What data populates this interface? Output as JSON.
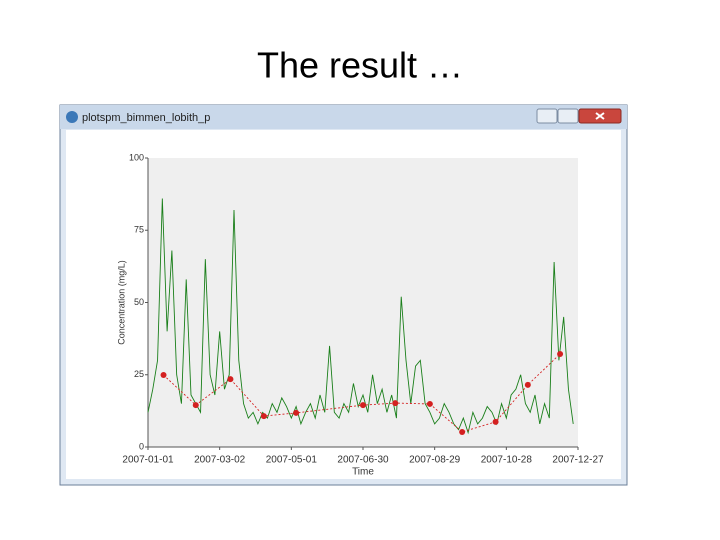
{
  "slide_title": "The result …",
  "window": {
    "title": "plotspm_bimmen_lobith_p"
  },
  "chart_data": {
    "type": "line",
    "xlabel": "Time",
    "ylabel": "Concentration (mg/L)",
    "xlim": [
      "2007-01-01",
      "2007-12-27"
    ],
    "xticks": [
      "2007-01-01",
      "2007-03-02",
      "2007-05-01",
      "2007-06-30",
      "2007-08-29",
      "2007-10-28",
      "2007-12-27"
    ],
    "ylim": [
      0,
      100
    ],
    "yticks": [
      0,
      25,
      50,
      75,
      100
    ],
    "series": [
      {
        "color": "#1a7f1a",
        "x": [
          "2007-01-01",
          "2007-01-05",
          "2007-01-09",
          "2007-01-13",
          "2007-01-17",
          "2007-01-21",
          "2007-01-25",
          "2007-01-29",
          "2007-02-02",
          "2007-02-06",
          "2007-02-10",
          "2007-02-14",
          "2007-02-18",
          "2007-02-22",
          "2007-02-26",
          "2007-03-02",
          "2007-03-06",
          "2007-03-10",
          "2007-03-14",
          "2007-03-18",
          "2007-03-22",
          "2007-03-26",
          "2007-03-30",
          "2007-04-03",
          "2007-04-07",
          "2007-04-11",
          "2007-04-15",
          "2007-04-19",
          "2007-04-23",
          "2007-04-27",
          "2007-05-01",
          "2007-05-05",
          "2007-05-09",
          "2007-05-13",
          "2007-05-17",
          "2007-05-21",
          "2007-05-25",
          "2007-05-29",
          "2007-06-02",
          "2007-06-06",
          "2007-06-10",
          "2007-06-14",
          "2007-06-18",
          "2007-06-22",
          "2007-06-26",
          "2007-06-30",
          "2007-07-04",
          "2007-07-08",
          "2007-07-12",
          "2007-07-16",
          "2007-07-20",
          "2007-07-24",
          "2007-07-28",
          "2007-08-01",
          "2007-08-05",
          "2007-08-09",
          "2007-08-13",
          "2007-08-17",
          "2007-08-21",
          "2007-08-25",
          "2007-08-29",
          "2007-09-02",
          "2007-09-06",
          "2007-09-10",
          "2007-09-14",
          "2007-09-18",
          "2007-09-22",
          "2007-09-26",
          "2007-09-30",
          "2007-10-04",
          "2007-10-08",
          "2007-10-12",
          "2007-10-16",
          "2007-10-20",
          "2007-10-24",
          "2007-10-28",
          "2007-11-01",
          "2007-11-05",
          "2007-11-09",
          "2007-11-13",
          "2007-11-17",
          "2007-11-21",
          "2007-11-25",
          "2007-11-29",
          "2007-12-03",
          "2007-12-07",
          "2007-12-11",
          "2007-12-15",
          "2007-12-19",
          "2007-12-23"
        ],
        "values": [
          12,
          20,
          30,
          86,
          40,
          68,
          25,
          15,
          58,
          18,
          15,
          12,
          65,
          25,
          18,
          40,
          20,
          25,
          82,
          30,
          15,
          10,
          12,
          8,
          12,
          10,
          15,
          12,
          17,
          14,
          10,
          14,
          8,
          12,
          15,
          10,
          18,
          12,
          35,
          12,
          10,
          15,
          12,
          22,
          14,
          18,
          12,
          25,
          15,
          20,
          12,
          18,
          10,
          52,
          30,
          15,
          28,
          30,
          15,
          12,
          8,
          10,
          15,
          12,
          8,
          6,
          10,
          5,
          12,
          8,
          10,
          14,
          12,
          8,
          15,
          10,
          18,
          20,
          25,
          15,
          12,
          18,
          8,
          15,
          10,
          64,
          30,
          45,
          20,
          8
        ]
      },
      {
        "color": "#d42020",
        "x": [
          "2007-01-14",
          "2007-02-10",
          "2007-03-11",
          "2007-04-08",
          "2007-05-05",
          "2007-06-30",
          "2007-07-27",
          "2007-08-25",
          "2007-09-21",
          "2007-10-19",
          "2007-11-15",
          "2007-12-12"
        ],
        "values": [
          24.9,
          14.5,
          23.5,
          10.7,
          11.8,
          14.5,
          15.2,
          14.9,
          5.2,
          8.7,
          21.5,
          32.2
        ]
      }
    ]
  }
}
